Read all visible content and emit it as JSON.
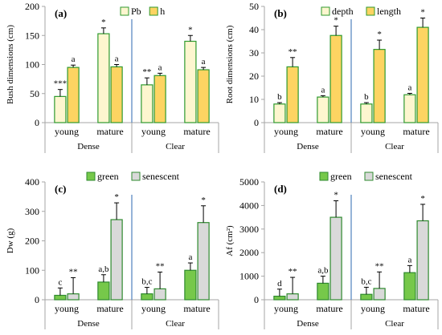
{
  "chart_data": [
    {
      "type": "bar",
      "panel_label": "(a)",
      "ylabel": "Bush dimensions (cm)",
      "ylim": [
        0,
        200
      ],
      "yticks": [
        0,
        50,
        100,
        150,
        200
      ],
      "groups": [
        "Dense",
        "Clear"
      ],
      "categories": [
        "young",
        "mature",
        "young",
        "mature"
      ],
      "series": [
        {
          "name": "Pb",
          "values": [
            45,
            153,
            65,
            140
          ],
          "errors": [
            12,
            10,
            12,
            10
          ],
          "labels": [
            "***",
            "*",
            "**",
            "*"
          ],
          "color": "#fdf6cf",
          "edge": "#2e9a2e"
        },
        {
          "name": "h",
          "values": [
            95,
            96,
            81,
            91
          ],
          "errors": [
            4,
            4,
            4,
            4
          ],
          "labels": [
            "a",
            "a",
            "a",
            "a"
          ],
          "color": "#fdd462",
          "edge": "#2e9a2e"
        }
      ],
      "legend": "top"
    },
    {
      "type": "bar",
      "panel_label": "(b)",
      "ylabel": "Root dimensions (cm)",
      "ylim": [
        0,
        50
      ],
      "yticks": [
        0,
        10,
        20,
        30,
        40,
        50
      ],
      "groups": [
        "Dense",
        "Clear"
      ],
      "categories": [
        "young",
        "mature",
        "young",
        "mature"
      ],
      "series": [
        {
          "name": "depth",
          "values": [
            8,
            11,
            8,
            12
          ],
          "errors": [
            0.6,
            0.6,
            0.6,
            0.6
          ],
          "labels": [
            "b",
            "a",
            "b",
            "a"
          ],
          "color": "#fdf6cf",
          "edge": "#2e9a2e"
        },
        {
          "name": "length",
          "values": [
            24,
            37.5,
            31.5,
            41
          ],
          "errors": [
            4,
            4,
            4,
            4
          ],
          "labels": [
            "**",
            "*",
            "*",
            "*"
          ],
          "color": "#fdd462",
          "edge": "#2e9a2e"
        }
      ],
      "legend": "top"
    },
    {
      "type": "bar",
      "panel_label": "(c)",
      "ylabel": "Dw (g)",
      "ylim": [
        0,
        400
      ],
      "yticks": [
        0,
        100,
        200,
        300,
        400
      ],
      "groups": [
        "Dense",
        "Clear"
      ],
      "categories": [
        "young",
        "mature",
        "young",
        "mature"
      ],
      "series": [
        {
          "name": "green",
          "values": [
            15,
            60,
            20,
            100
          ],
          "errors": [
            25,
            25,
            22,
            25
          ],
          "labels": [
            "c",
            "a,b",
            "b,c",
            "a"
          ],
          "color": "#76c84a",
          "edge": "#2e8a2e"
        },
        {
          "name": "senescent",
          "values": [
            20,
            272,
            37,
            262
          ],
          "errors": [
            55,
            57,
            57,
            57
          ],
          "labels": [
            "**",
            "*",
            "**",
            "*"
          ],
          "color": "#d9d9d9",
          "edge": "#2e8a2e"
        }
      ],
      "legend": "top"
    },
    {
      "type": "bar",
      "panel_label": "(d)",
      "ylabel": "Af (cm²)",
      "ylim": [
        0,
        5000
      ],
      "yticks": [
        0,
        1000,
        2000,
        3000,
        4000,
        5000
      ],
      "groups": [
        "Dense",
        "Clear"
      ],
      "categories": [
        "young",
        "mature",
        "young",
        "mature"
      ],
      "series": [
        {
          "name": "green",
          "values": [
            150,
            700,
            230,
            1150
          ],
          "errors": [
            300,
            300,
            300,
            300
          ],
          "labels": [
            "d",
            "a,b",
            "b,c",
            "a"
          ],
          "color": "#76c84a",
          "edge": "#2e8a2e"
        },
        {
          "name": "senescent",
          "values": [
            250,
            3500,
            480,
            3350
          ],
          "errors": [
            700,
            700,
            700,
            700
          ],
          "labels": [
            "**",
            "*",
            "**",
            "*"
          ],
          "color": "#d9d9d9",
          "edge": "#2e8a2e"
        }
      ],
      "legend": "top"
    }
  ],
  "colors": {
    "axis": "#a6a6a6",
    "divider": "#4f81bd",
    "error": "#000000"
  }
}
